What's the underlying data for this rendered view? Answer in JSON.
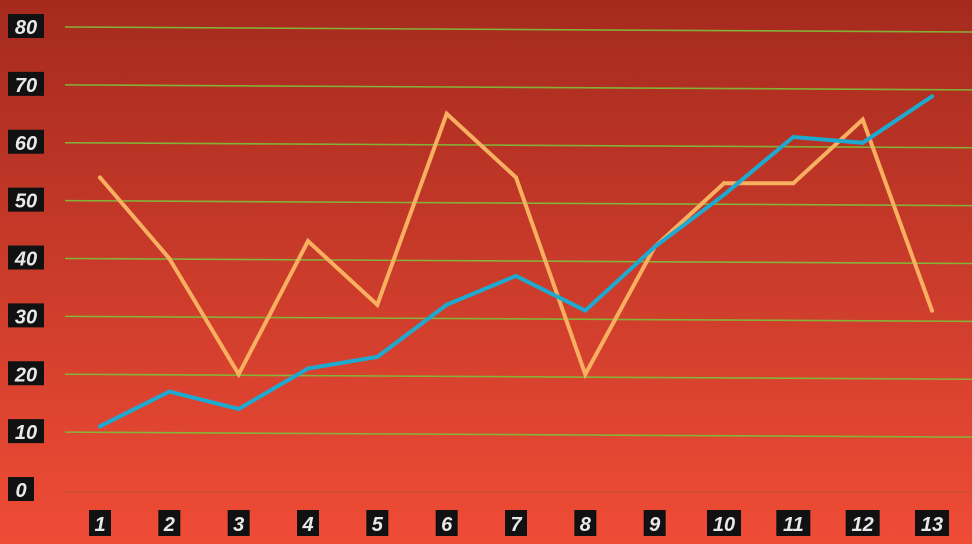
{
  "chart_data": {
    "type": "line",
    "title": "",
    "xlabel": "",
    "ylabel": "",
    "x": [
      "1",
      "2",
      "3",
      "4",
      "5",
      "6",
      "7",
      "8",
      "9",
      "10",
      "11",
      "12",
      "13"
    ],
    "y_ticks": [
      "0",
      "10",
      "20",
      "30",
      "40",
      "50",
      "60",
      "70",
      "80"
    ],
    "ylim": [
      0,
      80
    ],
    "grid": true,
    "legend": "none",
    "series": [
      {
        "color": "#f8b060",
        "values": [
          54,
          40,
          20,
          43,
          32,
          65,
          54,
          20,
          42,
          53,
          53,
          64,
          31
        ]
      },
      {
        "color": "#1eaad0",
        "values": [
          11,
          17,
          14,
          21,
          23,
          32,
          37,
          31,
          42,
          51,
          61,
          60,
          68
        ]
      }
    ],
    "colors": {
      "background_top": "#a52a1e",
      "background_bottom": "#ef4c36",
      "gridline": "#7fbf3a",
      "label_box": "#111111",
      "label_text": "#e8e8e8"
    }
  }
}
